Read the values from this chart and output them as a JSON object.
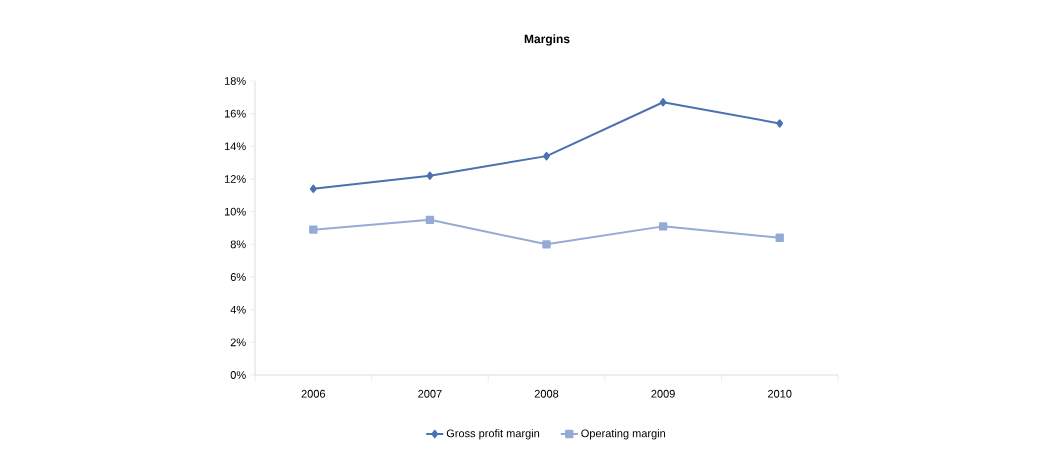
{
  "chart_data": {
    "type": "line",
    "title": "Margins",
    "categories": [
      "2006",
      "2007",
      "2008",
      "2009",
      "2010"
    ],
    "series": [
      {
        "name": "Gross profit margin",
        "color": "#4a72b0",
        "marker": "diamond",
        "values": [
          11.4,
          12.2,
          13.4,
          16.7,
          15.4
        ]
      },
      {
        "name": "Operating margin",
        "color": "#96aad6",
        "marker": "square",
        "values": [
          8.9,
          9.5,
          8.0,
          9.1,
          8.4
        ]
      }
    ],
    "ylim": [
      0,
      18
    ],
    "yticks": [
      {
        "value": 0,
        "label": "0%"
      },
      {
        "value": 2,
        "label": "2%"
      },
      {
        "value": 4,
        "label": "4%"
      },
      {
        "value": 6,
        "label": "6%"
      },
      {
        "value": 8,
        "label": "8%"
      },
      {
        "value": 10,
        "label": "10%"
      },
      {
        "value": 12,
        "label": "12%"
      },
      {
        "value": 14,
        "label": "14%"
      },
      {
        "value": 16,
        "label": "16%"
      },
      {
        "value": 18,
        "label": "18%"
      }
    ],
    "grid": false,
    "legend": "bottom",
    "line_style": "solid"
  }
}
